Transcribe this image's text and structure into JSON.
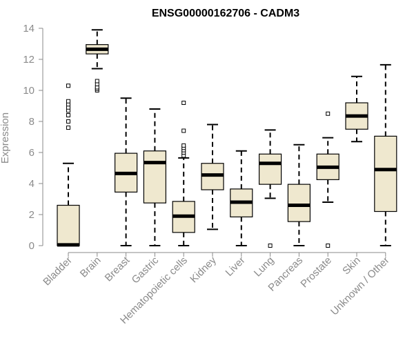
{
  "chart_data": {
    "type": "box",
    "title": "ENSG00000162706 - CADM3",
    "xlabel": "",
    "ylabel": "Expression",
    "ylim": [
      0,
      14
    ],
    "yticks": [
      0,
      2,
      4,
      6,
      8,
      10,
      12,
      14
    ],
    "grid": false,
    "colors": {
      "box_fill": "#efe8cf",
      "box_stroke": "#000000",
      "median": "#000000",
      "whisker": "#000000",
      "axis": "#8a8a8a",
      "text": "#8a8a8a"
    },
    "categories": [
      "Bladder",
      "Brain",
      "Breast",
      "Gastric",
      "Hematopoietic cells",
      "Kidney",
      "Liver",
      "Lung",
      "Pancreas",
      "Prostate",
      "Skin",
      "Unknown / Other"
    ],
    "boxes": [
      {
        "category": "Bladder",
        "whisker_low": 0,
        "q1": 0,
        "median": 0.05,
        "q3": 2.6,
        "whisker_high": 5.3,
        "outliers": [
          7.6,
          8.0,
          8.4,
          8.7,
          8.9,
          9.1,
          9.3,
          10.3
        ]
      },
      {
        "category": "Brain",
        "whisker_low": 11.4,
        "q1": 12.35,
        "median": 12.65,
        "q3": 12.95,
        "whisker_high": 13.9,
        "outliers": [
          10.0,
          10.1,
          10.2,
          10.4,
          10.6
        ]
      },
      {
        "category": "Breast",
        "whisker_low": 0,
        "q1": 3.45,
        "median": 4.65,
        "q3": 5.95,
        "whisker_high": 9.5,
        "outliers": []
      },
      {
        "category": "Gastric",
        "whisker_low": 0,
        "q1": 2.75,
        "median": 5.35,
        "q3": 6.1,
        "whisker_high": 8.8,
        "outliers": []
      },
      {
        "category": "Hematopoietic cells",
        "whisker_low": 0,
        "q1": 0.85,
        "median": 1.9,
        "q3": 2.85,
        "whisker_high": 5.65,
        "outliers": [
          5.8,
          6.0,
          6.15,
          6.3,
          6.45,
          7.4,
          9.2
        ]
      },
      {
        "category": "Kidney",
        "whisker_low": 1.05,
        "q1": 3.6,
        "median": 4.55,
        "q3": 5.3,
        "whisker_high": 7.8,
        "outliers": []
      },
      {
        "category": "Liver",
        "whisker_low": 0,
        "q1": 1.85,
        "median": 2.8,
        "q3": 3.65,
        "whisker_high": 6.1,
        "outliers": []
      },
      {
        "category": "Lung",
        "whisker_low": 3.05,
        "q1": 3.95,
        "median": 5.3,
        "q3": 5.9,
        "whisker_high": 7.45,
        "outliers": [
          0
        ]
      },
      {
        "category": "Pancreas",
        "whisker_low": 0,
        "q1": 1.55,
        "median": 2.6,
        "q3": 3.95,
        "whisker_high": 6.5,
        "outliers": []
      },
      {
        "category": "Prostate",
        "whisker_low": 2.8,
        "q1": 4.25,
        "median": 5.05,
        "q3": 5.9,
        "whisker_high": 6.95,
        "outliers": [
          0,
          8.5
        ]
      },
      {
        "category": "Skin",
        "whisker_low": 6.7,
        "q1": 7.5,
        "median": 8.35,
        "q3": 9.2,
        "whisker_high": 10.9,
        "outliers": []
      },
      {
        "category": "Unknown / Other",
        "whisker_low": 0,
        "q1": 2.2,
        "median": 4.9,
        "q3": 7.05,
        "whisker_high": 11.65,
        "outliers": []
      }
    ]
  }
}
